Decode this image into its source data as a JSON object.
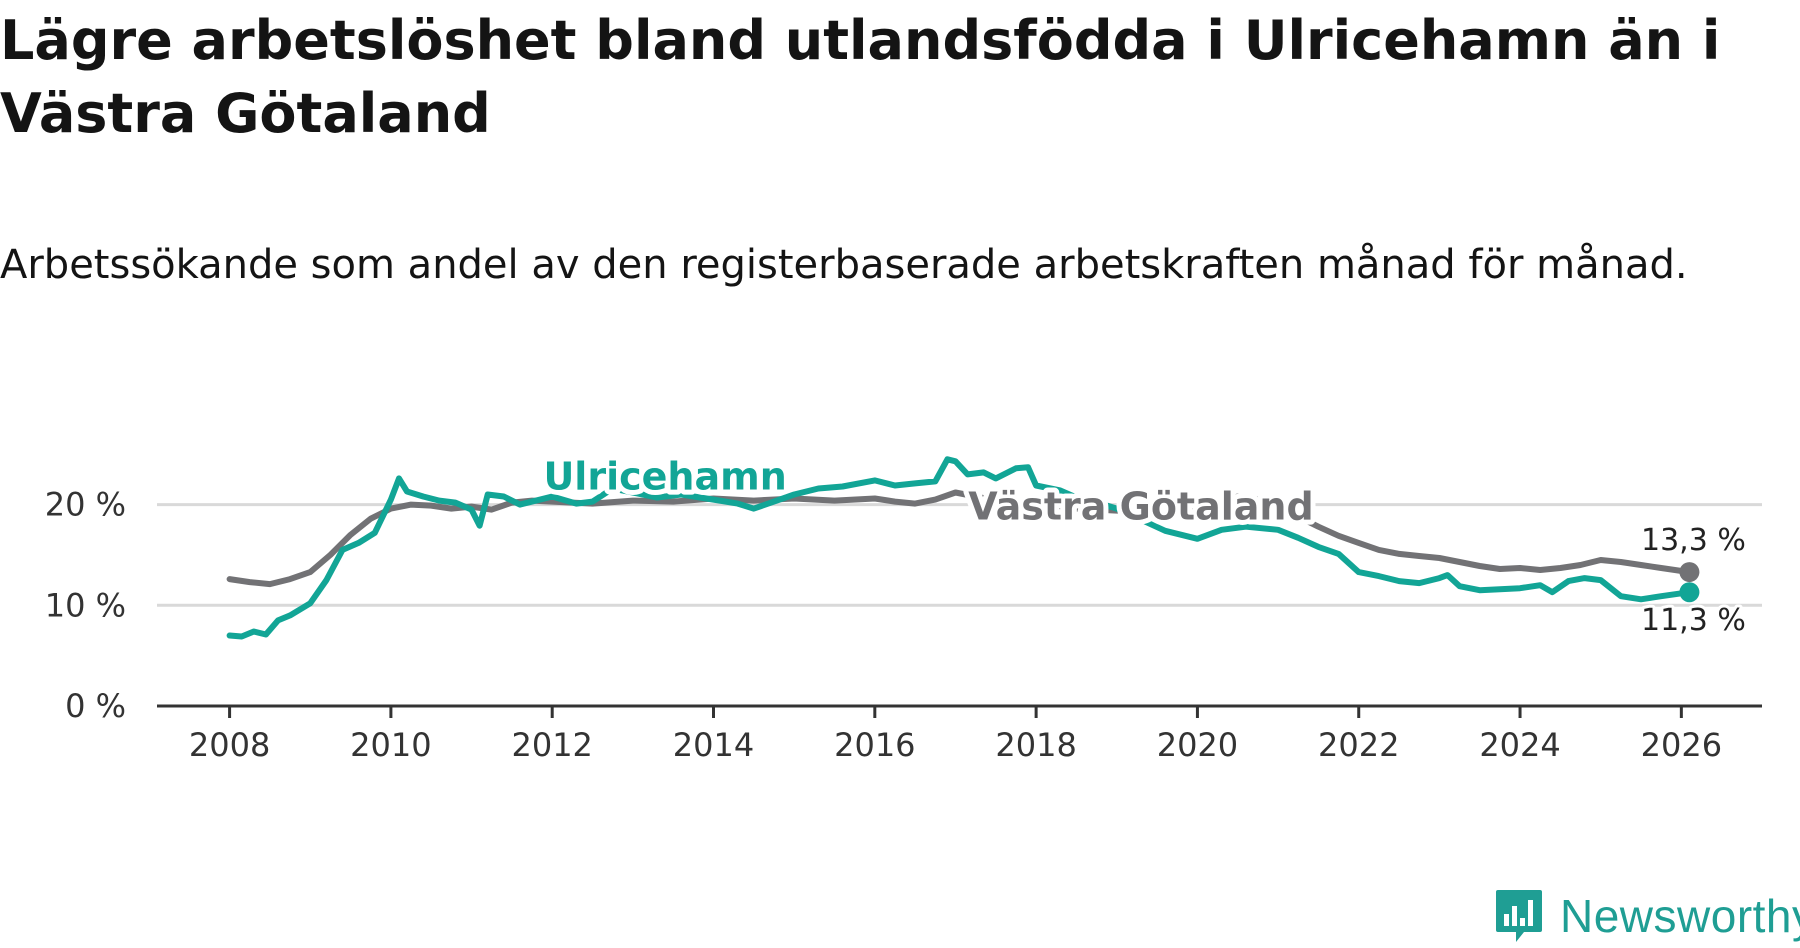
{
  "title": "Lägre arbetslöshet bland utlandsfödda i Ulricehamn än i Västra Götaland",
  "subtitle": "Arbetssökande som andel av den registerbaserade arbetskraften månad för månad.",
  "logo": {
    "text": "Newsworthy",
    "icon": "newsworthy-logo-icon",
    "color": "#1f9e94"
  },
  "colors": {
    "ulricehamn": "#12a596",
    "vastra_gotaland": "#727275",
    "grid": "#d9d9d9",
    "axis": "#333333"
  },
  "chart_data": {
    "type": "line",
    "title": "Lägre arbetslöshet bland utlandsfödda i Ulricehamn än i Västra Götaland",
    "subtitle": "Arbetssökande som andel av den registerbaserade arbetskraften månad för månad.",
    "xlabel": "",
    "ylabel": "",
    "xlim": [
      2007.1,
      2027
    ],
    "ylim": [
      0,
      25
    ],
    "x_ticks": [
      2008,
      2010,
      2012,
      2014,
      2016,
      2018,
      2020,
      2022,
      2024,
      2026
    ],
    "y_ticks": [
      0,
      10,
      20
    ],
    "y_tick_labels": [
      "0 %",
      "10 %",
      "20 %"
    ],
    "grid": "horizontal",
    "legend": "inline labels",
    "series": [
      {
        "name": "Västra Götaland",
        "key": "vastra_gotaland",
        "label_at": [
          2019.3,
          18.5
        ],
        "end_label": "13,3 %",
        "points": [
          [
            2008.0,
            12.6
          ],
          [
            2008.25,
            12.3
          ],
          [
            2008.5,
            12.1
          ],
          [
            2008.75,
            12.6
          ],
          [
            2009.0,
            13.3
          ],
          [
            2009.25,
            15.0
          ],
          [
            2009.5,
            17.0
          ],
          [
            2009.75,
            18.6
          ],
          [
            2010.0,
            19.6
          ],
          [
            2010.25,
            20.0
          ],
          [
            2010.5,
            19.9
          ],
          [
            2010.75,
            19.6
          ],
          [
            2011.0,
            19.8
          ],
          [
            2011.25,
            19.5
          ],
          [
            2011.5,
            20.2
          ],
          [
            2011.75,
            20.4
          ],
          [
            2012.0,
            20.3
          ],
          [
            2012.5,
            20.1
          ],
          [
            2013.0,
            20.4
          ],
          [
            2013.5,
            20.3
          ],
          [
            2014.0,
            20.6
          ],
          [
            2014.5,
            20.4
          ],
          [
            2015.0,
            20.6
          ],
          [
            2015.5,
            20.4
          ],
          [
            2016.0,
            20.6
          ],
          [
            2016.25,
            20.3
          ],
          [
            2016.5,
            20.1
          ],
          [
            2016.75,
            20.5
          ],
          [
            2017.0,
            21.2
          ],
          [
            2017.25,
            20.8
          ],
          [
            2017.5,
            20.4
          ],
          [
            2017.75,
            20.2
          ],
          [
            2018.0,
            20.2
          ],
          [
            2018.5,
            19.6
          ],
          [
            2019.0,
            19.4
          ],
          [
            2019.5,
            19.3
          ],
          [
            2020.0,
            19.6
          ],
          [
            2020.25,
            20.2
          ],
          [
            2020.5,
            20.8
          ],
          [
            2020.75,
            20.5
          ],
          [
            2021.0,
            19.8
          ],
          [
            2021.25,
            18.8
          ],
          [
            2021.5,
            17.8
          ],
          [
            2021.75,
            16.9
          ],
          [
            2022.0,
            16.2
          ],
          [
            2022.25,
            15.5
          ],
          [
            2022.5,
            15.1
          ],
          [
            2022.75,
            14.9
          ],
          [
            2023.0,
            14.7
          ],
          [
            2023.25,
            14.3
          ],
          [
            2023.5,
            13.9
          ],
          [
            2023.75,
            13.6
          ],
          [
            2024.0,
            13.7
          ],
          [
            2024.25,
            13.5
          ],
          [
            2024.5,
            13.7
          ],
          [
            2024.75,
            14.0
          ],
          [
            2025.0,
            14.5
          ],
          [
            2025.25,
            14.3
          ],
          [
            2025.5,
            14.0
          ],
          [
            2025.75,
            13.7
          ],
          [
            2026.1,
            13.3
          ]
        ]
      },
      {
        "name": "Ulricehamn",
        "key": "ulricehamn",
        "label_at": [
          2013.4,
          21.5
        ],
        "end_label": "11,3 %",
        "points": [
          [
            2008.0,
            7.0
          ],
          [
            2008.15,
            6.9
          ],
          [
            2008.3,
            7.4
          ],
          [
            2008.45,
            7.1
          ],
          [
            2008.6,
            8.5
          ],
          [
            2008.75,
            9.0
          ],
          [
            2009.0,
            10.2
          ],
          [
            2009.2,
            12.5
          ],
          [
            2009.4,
            15.5
          ],
          [
            2009.6,
            16.2
          ],
          [
            2009.8,
            17.2
          ],
          [
            2010.0,
            20.5
          ],
          [
            2010.1,
            22.6
          ],
          [
            2010.2,
            21.3
          ],
          [
            2010.4,
            20.8
          ],
          [
            2010.6,
            20.4
          ],
          [
            2010.8,
            20.2
          ],
          [
            2011.0,
            19.5
          ],
          [
            2011.1,
            17.9
          ],
          [
            2011.2,
            21.0
          ],
          [
            2011.4,
            20.8
          ],
          [
            2011.6,
            20.0
          ],
          [
            2011.8,
            20.4
          ],
          [
            2012.0,
            20.8
          ],
          [
            2012.3,
            20.1
          ],
          [
            2012.5,
            20.3
          ],
          [
            2012.75,
            21.6
          ],
          [
            2013.0,
            21.2
          ],
          [
            2013.3,
            20.7
          ],
          [
            2013.6,
            21.0
          ],
          [
            2014.0,
            20.5
          ],
          [
            2014.3,
            20.1
          ],
          [
            2014.5,
            19.6
          ],
          [
            2014.75,
            20.3
          ],
          [
            2015.0,
            21.0
          ],
          [
            2015.3,
            21.6
          ],
          [
            2015.6,
            21.8
          ],
          [
            2016.0,
            22.4
          ],
          [
            2016.25,
            21.9
          ],
          [
            2016.5,
            22.1
          ],
          [
            2016.75,
            22.3
          ],
          [
            2016.9,
            24.5
          ],
          [
            2017.0,
            24.3
          ],
          [
            2017.15,
            23.0
          ],
          [
            2017.35,
            23.2
          ],
          [
            2017.5,
            22.6
          ],
          [
            2017.75,
            23.6
          ],
          [
            2017.9,
            23.7
          ],
          [
            2018.0,
            21.9
          ],
          [
            2018.3,
            21.4
          ],
          [
            2018.5,
            20.7
          ],
          [
            2018.8,
            20.1
          ],
          [
            2019.0,
            19.6
          ],
          [
            2019.3,
            18.5
          ],
          [
            2019.6,
            17.4
          ],
          [
            2020.0,
            16.6
          ],
          [
            2020.3,
            17.5
          ],
          [
            2020.6,
            17.8
          ],
          [
            2021.0,
            17.5
          ],
          [
            2021.25,
            16.7
          ],
          [
            2021.5,
            15.8
          ],
          [
            2021.75,
            15.1
          ],
          [
            2022.0,
            13.3
          ],
          [
            2022.25,
            12.9
          ],
          [
            2022.5,
            12.4
          ],
          [
            2022.75,
            12.2
          ],
          [
            2023.0,
            12.7
          ],
          [
            2023.1,
            13.0
          ],
          [
            2023.25,
            11.9
          ],
          [
            2023.5,
            11.5
          ],
          [
            2023.75,
            11.6
          ],
          [
            2024.0,
            11.7
          ],
          [
            2024.25,
            12.0
          ],
          [
            2024.4,
            11.3
          ],
          [
            2024.6,
            12.4
          ],
          [
            2024.8,
            12.7
          ],
          [
            2025.0,
            12.5
          ],
          [
            2025.25,
            10.9
          ],
          [
            2025.5,
            10.6
          ],
          [
            2025.75,
            10.9
          ],
          [
            2026.1,
            11.3
          ]
        ]
      }
    ]
  }
}
